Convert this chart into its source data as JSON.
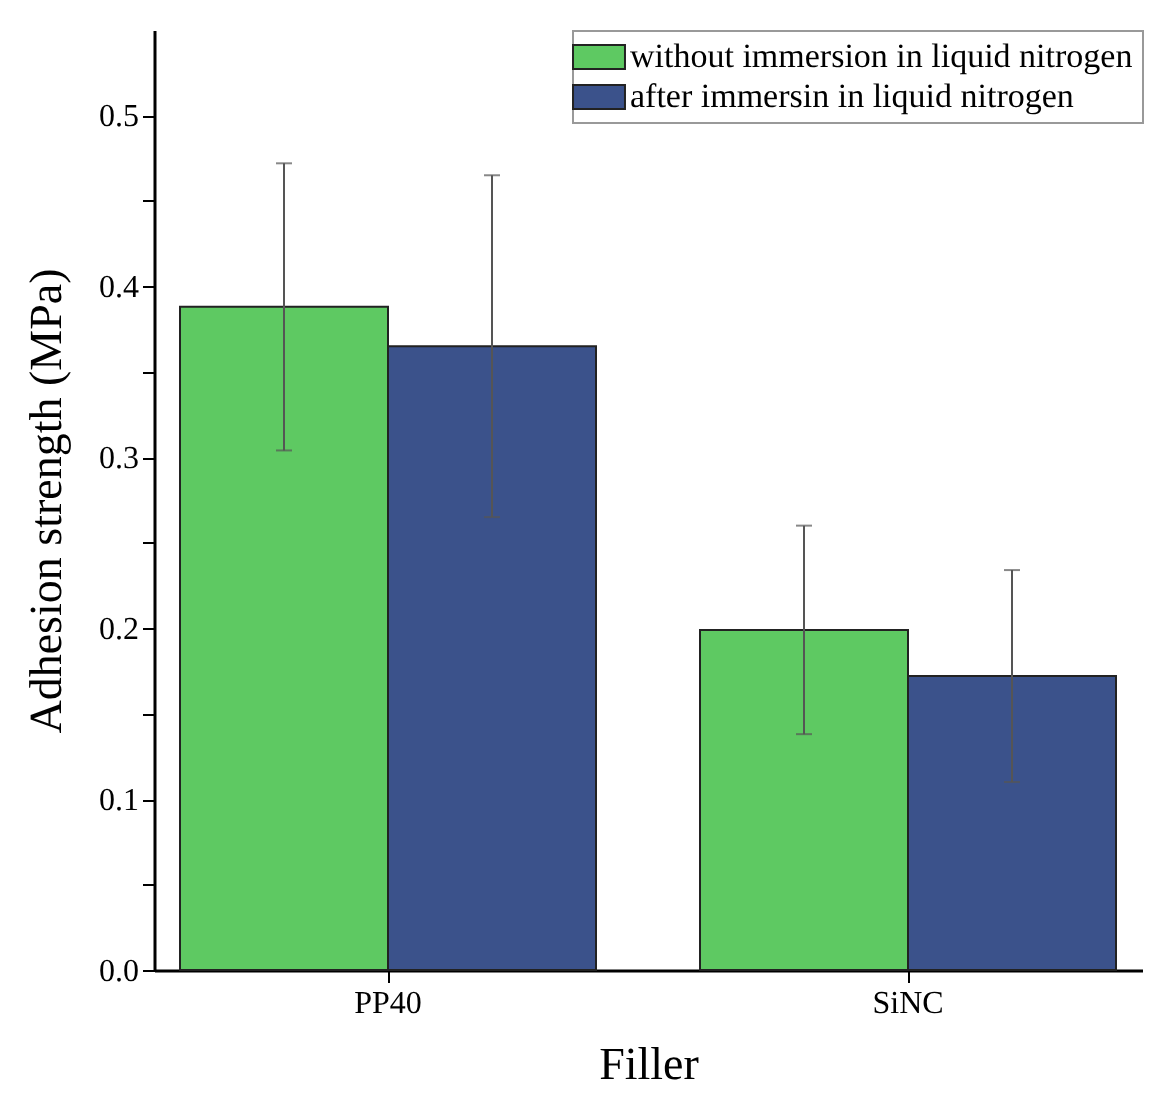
{
  "chart_data": {
    "type": "bar",
    "xlabel": "Filler",
    "ylabel": "Adhesion strength (MPa)",
    "categories": [
      "PP40",
      "SiNC"
    ],
    "series": [
      {
        "name": "without immersion in liquid nitrogen",
        "color": "#5ec962",
        "values": [
          0.388,
          0.199
        ],
        "errors": [
          0.084,
          0.061
        ]
      },
      {
        "name": "after immersin in liquid nitrogen",
        "color": "#3b528b",
        "values": [
          0.365,
          0.172
        ],
        "errors": [
          0.1,
          0.062
        ]
      }
    ],
    "ylim": [
      0,
      0.55
    ],
    "yticks": [
      {
        "value": 0,
        "label": "0.0"
      },
      {
        "value": 0.05,
        "label": null
      },
      0.1,
      {
        "value": 0.15,
        "label": null
      },
      0.2,
      {
        "value": 0.25,
        "label": null
      },
      0.3,
      {
        "value": 0.35,
        "label": null
      },
      0.4,
      {
        "value": 0.45,
        "label": null
      },
      0.5
    ],
    "legend": "top right",
    "grid": false
  }
}
